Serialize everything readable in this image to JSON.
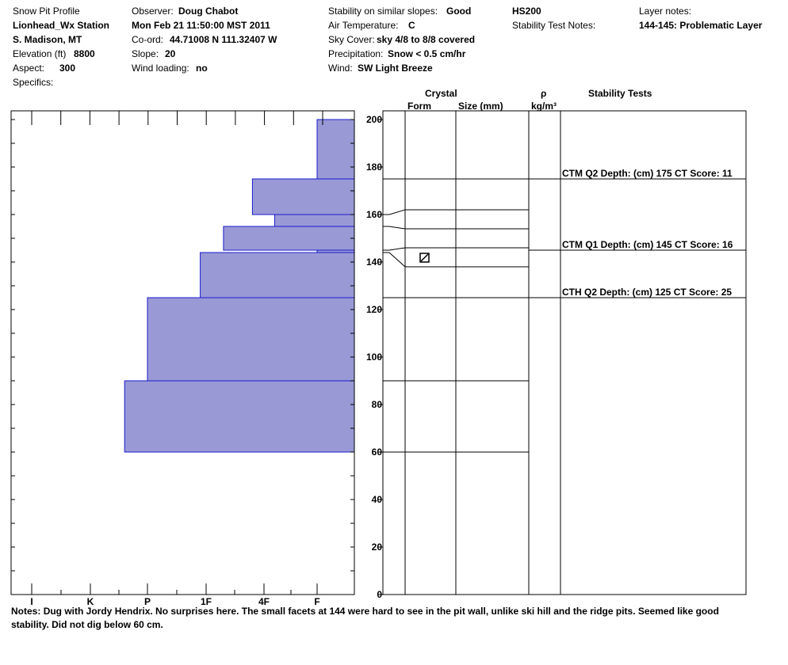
{
  "header": {
    "col1": {
      "title": "Snow Pit Profile",
      "location": "Lionhead_Wx Station",
      "region": "S. Madison, MT",
      "elevation_label": "Elevation (ft)",
      "elevation_value": "8800",
      "aspect_label": "Aspect:",
      "aspect_value": "300",
      "specifics_label": "Specifics:"
    },
    "col2": {
      "observer_label": "Observer:",
      "observer_value": "Doug Chabot",
      "datetime": "Mon Feb 21 11:50:00 MST 2011",
      "coord_label": "Co-ord:",
      "coord_value": "44.71008 N 111.32407 W",
      "slope_label": "Slope:",
      "slope_value": "20",
      "wind_loading_label": "Wind loading:",
      "wind_loading_value": "no"
    },
    "col3": {
      "stability_label": "Stability on similar slopes:",
      "stability_value": "Good",
      "air_temp_label": "Air Temperature:",
      "air_temp_value": "C",
      "sky_label": "Sky Cover:",
      "sky_value": "sky 4/8 to 8/8 covered",
      "precip_label": "Precipitation:",
      "precip_value": "Snow < 0.5 cm/hr",
      "wind_label": "Wind:",
      "wind_value": "SW Light Breeze"
    },
    "col4": {
      "hs": "HS200",
      "stability_test_notes_label": "Stability Test Notes:"
    },
    "col5": {
      "layer_notes_label": "Layer notes:",
      "layer_notes_value": "144-145: Problematic Layer"
    }
  },
  "columns": {
    "crystal": "Crystal",
    "form": "Form",
    "size": "Size (mm)",
    "rho": "ρ",
    "density_unit": "kg/m³",
    "stability_tests": "Stability Tests"
  },
  "chart_data": {
    "type": "bar",
    "orientation": "horizontal",
    "x_axis": {
      "label": "",
      "hardness_ticks": [
        "I",
        "K",
        "P",
        "1F",
        "4F",
        "F"
      ],
      "hardness_tick_values": [
        1,
        2,
        3,
        4,
        5,
        6
      ]
    },
    "y_axis": {
      "label": "",
      "range": [
        0,
        200
      ],
      "ticks": [
        0,
        20,
        40,
        60,
        80,
        100,
        120,
        140,
        160,
        180,
        200
      ]
    },
    "hardness_layers": [
      {
        "top": 200,
        "bottom": 175,
        "hardness": 6.0
      },
      {
        "top": 175,
        "bottom": 160,
        "hardness": 4.8
      },
      {
        "top": 160,
        "bottom": 155,
        "hardness": 5.2
      },
      {
        "top": 155,
        "bottom": 145,
        "hardness": 4.3
      },
      {
        "top": 145,
        "bottom": 144,
        "hardness": 6.0
      },
      {
        "top": 144,
        "bottom": 125,
        "hardness": 3.9
      },
      {
        "top": 125,
        "bottom": 90,
        "hardness": 3.0
      },
      {
        "top": 90,
        "bottom": 60,
        "hardness": 2.6
      }
    ],
    "layer_boundaries": [
      {
        "depth": 175,
        "left_depth": 175
      },
      {
        "depth": 162,
        "left_depth": 160
      },
      {
        "depth": 154,
        "left_depth": 155
      },
      {
        "depth": 146,
        "left_depth": 145
      },
      {
        "depth": 138,
        "left_depth": 144
      },
      {
        "depth": 125,
        "left_depth": 125
      },
      {
        "depth": 90,
        "left_depth": 90
      },
      {
        "depth": 60,
        "left_depth": 60
      }
    ],
    "crystal_symbols": [
      {
        "depth": 142,
        "symbol": "faceted"
      }
    ],
    "stability_tests": [
      {
        "depth": 175,
        "label": "CTM Q2 Depth: (cm) 175 CT Score: 11"
      },
      {
        "depth": 145,
        "label": "CTM Q1 Depth: (cm) 145 CT Score: 16"
      },
      {
        "depth": 125,
        "label": "CTH Q2 Depth: (cm) 125 CT Score: 25"
      }
    ]
  },
  "notes": {
    "label": "Notes:",
    "text": "Dug with Jordy Hendrix. No surprises here.  The small facets at 144 were hard to see in the pit wall, unlike ski hill and the ridge pits.  Seemed like good stability.  Did not dig below 60 cm."
  },
  "colors": {
    "bar_fill": "#9999d6",
    "bar_stroke": "#1a1acc",
    "line": "#000000"
  }
}
